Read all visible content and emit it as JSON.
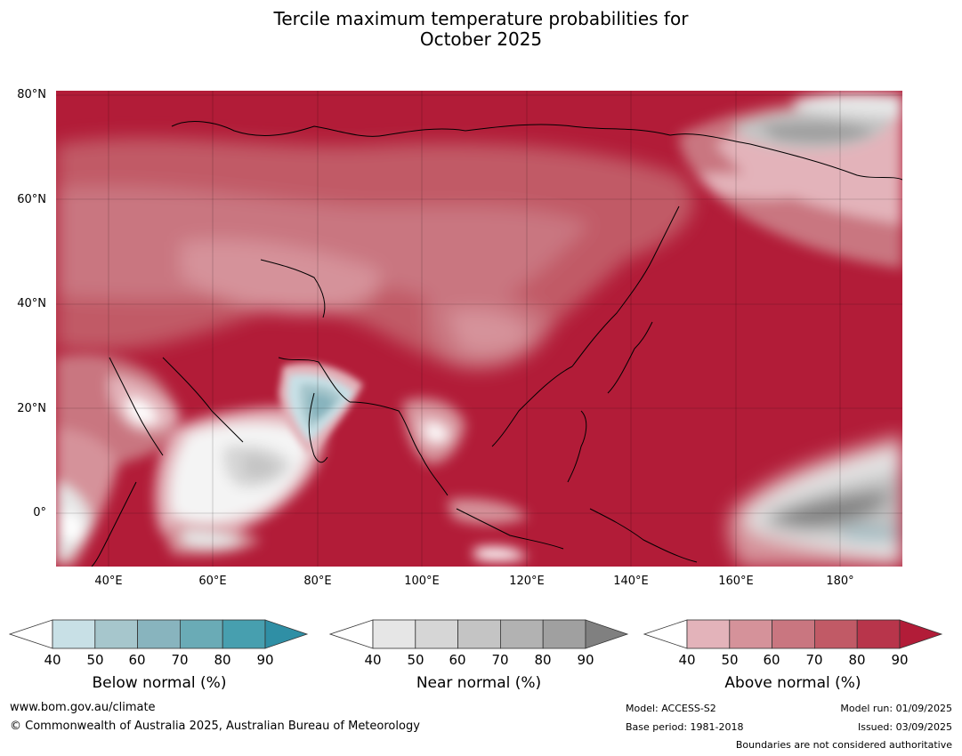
{
  "title_line1": "Tercile maximum temperature probabilities for",
  "title_line2": "October 2025",
  "lat_labels": [
    "80°N",
    "60°N",
    "40°N",
    "20°N",
    "0°"
  ],
  "lon_labels": [
    "40°E",
    "60°E",
    "80°E",
    "100°E",
    "120°E",
    "140°E",
    "160°E",
    "180°"
  ],
  "colorbars": [
    {
      "label": "Below normal (%)",
      "ticks": [
        "40",
        "50",
        "60",
        "70",
        "80",
        "90"
      ],
      "colors": [
        "#c8e0e6",
        "#a6c6cc",
        "#88b4be",
        "#6aabb6",
        "#479faf",
        "#2f8fa5"
      ]
    },
    {
      "label": "Near normal (%)",
      "ticks": [
        "40",
        "50",
        "60",
        "70",
        "80",
        "90"
      ],
      "colors": [
        "#e6e6e6",
        "#d6d6d6",
        "#c4c4c4",
        "#b2b2b2",
        "#a0a0a0",
        "#808080"
      ]
    },
    {
      "label": "Above normal (%)",
      "ticks": [
        "40",
        "50",
        "60",
        "70",
        "80",
        "90"
      ],
      "colors": [
        "#e3b3ba",
        "#d5929a",
        "#c97680",
        "#c15a66",
        "#b8354b",
        "#b21c38"
      ]
    }
  ],
  "footer": {
    "website": "www.bom.gov.au/climate",
    "copyright": "© Commonwealth of Australia 2025, Australian Bureau of Meteorology",
    "model": "Model: ACCESS-S2",
    "base_period": "Base period: 1981-2018",
    "model_run": "Model run: 01/09/2025",
    "issued": "Issued: 03/09/2025",
    "disclaimer": "Boundaries are not considered authoritative"
  }
}
